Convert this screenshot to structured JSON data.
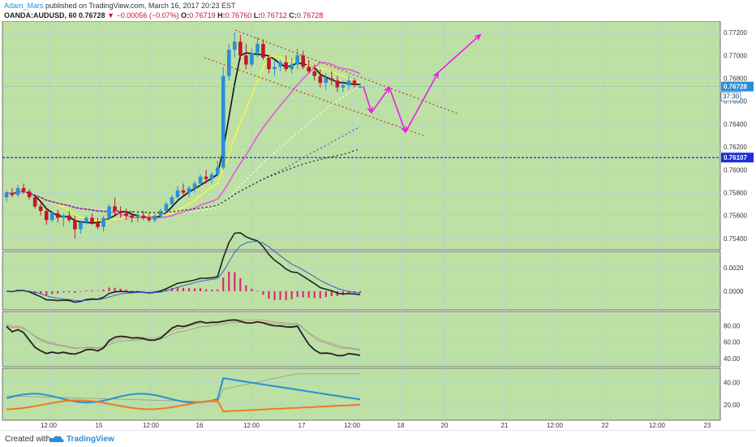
{
  "header": {
    "publisher": "Adam_Mars",
    "published_text": " published on TradingView.com, March 16, 2017 20:23 EST",
    "symbol": "OANDA:AUDUSD, 60",
    "last": "0.76728",
    "change": "−0.00056 (−0.07%)",
    "ohlc_o_label": "O:",
    "ohlc_o": "0.76719",
    "ohlc_h_label": "H:",
    "ohlc_h": "0.76760",
    "ohlc_l_label": "L:",
    "ohlc_l": "0.76712",
    "ohlc_c_label": "C:",
    "ohlc_c": "0.76728"
  },
  "footer": {
    "created_with": "Created with",
    "brand": "TradingView"
  },
  "colors": {
    "background": "#bde0a5",
    "candle_up": "#2a8fd6",
    "candle_down": "#c4152b",
    "ma_fast": "#111111",
    "ma_yellow": "#f5f542",
    "ma_pink": "#e35be0",
    "projection": "#e91fe6",
    "channel": "#b5402a",
    "support": "#1c2fd8",
    "price_tag": "#2a8fd6",
    "histogram": "#e0286c"
  },
  "chart_data": [
    {
      "type": "candlestick",
      "panel": "price",
      "symbol": "OANDA:AUDUSD",
      "interval": "60",
      "y_ticks": [
        "0.77200",
        "0.77000",
        "0.76800",
        "0.76600",
        "0.76400",
        "0.76200",
        "0.76000",
        "0.75800",
        "0.75600",
        "0.75400"
      ],
      "ylim": [
        0.753,
        0.773
      ],
      "x_ticks": [
        "12:00",
        "15",
        "12:00",
        "16",
        "12:00",
        "17",
        "12:00",
        "18",
        "20",
        "21",
        "12:00",
        "22",
        "12:00",
        "23"
      ],
      "last_price_label": "0.76728",
      "countdown_label": "37:30",
      "support_level": 0.76107,
      "support_label": "0.76107",
      "candles": [
        [
          0.7576,
          0.7582,
          0.7572,
          0.758
        ],
        [
          0.758,
          0.7584,
          0.7576,
          0.7578
        ],
        [
          0.7578,
          0.7587,
          0.7576,
          0.7584
        ],
        [
          0.7584,
          0.7588,
          0.7579,
          0.7581
        ],
        [
          0.7581,
          0.7583,
          0.7574,
          0.7576
        ],
        [
          0.7576,
          0.7578,
          0.7566,
          0.7568
        ],
        [
          0.7568,
          0.7572,
          0.756,
          0.7564
        ],
        [
          0.7564,
          0.7566,
          0.7552,
          0.7556
        ],
        [
          0.7556,
          0.7564,
          0.7554,
          0.7562
        ],
        [
          0.7562,
          0.7565,
          0.7554,
          0.7558
        ],
        [
          0.7558,
          0.7562,
          0.755,
          0.756
        ],
        [
          0.756,
          0.7564,
          0.7554,
          0.7556
        ],
        [
          0.7556,
          0.756,
          0.754,
          0.7548
        ],
        [
          0.7548,
          0.7556,
          0.7544,
          0.7554
        ],
        [
          0.7554,
          0.756,
          0.7552,
          0.7558
        ],
        [
          0.7558,
          0.7562,
          0.7552,
          0.7554
        ],
        [
          0.7554,
          0.7558,
          0.7548,
          0.755
        ],
        [
          0.755,
          0.756,
          0.7546,
          0.7558
        ],
        [
          0.7558,
          0.757,
          0.7556,
          0.7568
        ],
        [
          0.7568,
          0.7576,
          0.756,
          0.7564
        ],
        [
          0.7564,
          0.7568,
          0.7558,
          0.7562
        ],
        [
          0.7562,
          0.7566,
          0.7556,
          0.756
        ],
        [
          0.756,
          0.7564,
          0.7554,
          0.7558
        ],
        [
          0.7558,
          0.7562,
          0.7554,
          0.756
        ],
        [
          0.756,
          0.7564,
          0.7556,
          0.7558
        ],
        [
          0.7558,
          0.7562,
          0.7554,
          0.7556
        ],
        [
          0.7556,
          0.7562,
          0.7554,
          0.756
        ],
        [
          0.756,
          0.7566,
          0.7558,
          0.7564
        ],
        [
          0.7564,
          0.7572,
          0.7562,
          0.757
        ],
        [
          0.757,
          0.7578,
          0.7568,
          0.7576
        ],
        [
          0.7576,
          0.7586,
          0.7574,
          0.7582
        ],
        [
          0.7582,
          0.7588,
          0.7576,
          0.758
        ],
        [
          0.758,
          0.7586,
          0.7576,
          0.7584
        ],
        [
          0.7584,
          0.759,
          0.758,
          0.7588
        ],
        [
          0.7588,
          0.7596,
          0.7586,
          0.7594
        ],
        [
          0.7594,
          0.76,
          0.7588,
          0.7592
        ],
        [
          0.7592,
          0.7598,
          0.7588,
          0.7596
        ],
        [
          0.7596,
          0.7608,
          0.7594,
          0.7602
        ],
        [
          0.7602,
          0.769,
          0.76,
          0.7682
        ],
        [
          0.7682,
          0.771,
          0.7678,
          0.7705
        ],
        [
          0.7705,
          0.772,
          0.7698,
          0.7712
        ],
        [
          0.7712,
          0.7718,
          0.7696,
          0.77
        ],
        [
          0.77,
          0.771,
          0.7688,
          0.7692
        ],
        [
          0.7692,
          0.7706,
          0.769,
          0.7702
        ],
        [
          0.7702,
          0.7716,
          0.7698,
          0.771
        ],
        [
          0.771,
          0.7714,
          0.7696,
          0.7698
        ],
        [
          0.7698,
          0.77,
          0.7684,
          0.7688
        ],
        [
          0.7688,
          0.7696,
          0.7682,
          0.769
        ],
        [
          0.769,
          0.7696,
          0.7686,
          0.7694
        ],
        [
          0.7694,
          0.77,
          0.7686,
          0.7688
        ],
        [
          0.7688,
          0.7698,
          0.7684,
          0.7692
        ],
        [
          0.7692,
          0.7706,
          0.7688,
          0.77
        ],
        [
          0.77,
          0.7704,
          0.7688,
          0.769
        ],
        [
          0.769,
          0.7696,
          0.7684,
          0.7686
        ],
        [
          0.7686,
          0.7692,
          0.7678,
          0.7682
        ],
        [
          0.7682,
          0.7688,
          0.7672,
          0.7676
        ],
        [
          0.7676,
          0.7684,
          0.767,
          0.768
        ],
        [
          0.768,
          0.7686,
          0.7674,
          0.7678
        ],
        [
          0.7678,
          0.7682,
          0.7668,
          0.7672
        ],
        [
          0.7672,
          0.7678,
          0.7668,
          0.7674
        ],
        [
          0.7674,
          0.7682,
          0.767,
          0.7678
        ],
        [
          0.7678,
          0.768,
          0.7672,
          0.7674
        ],
        [
          0.76719,
          0.7676,
          0.76712,
          0.76728
        ]
      ]
    },
    {
      "type": "macd",
      "panel": "indicator-1",
      "y_ticks": [
        "0.0020",
        "0.0000"
      ],
      "ylim": [
        -0.0016,
        0.0034
      ]
    },
    {
      "type": "line",
      "panel": "indicator-2",
      "y_ticks": [
        "80.00",
        "60.00",
        "40.00"
      ],
      "ylim": [
        30,
        97
      ]
    },
    {
      "type": "line",
      "panel": "indicator-3",
      "y_ticks": [
        "40.00",
        "20.00"
      ],
      "ylim": [
        6,
        53
      ]
    }
  ]
}
